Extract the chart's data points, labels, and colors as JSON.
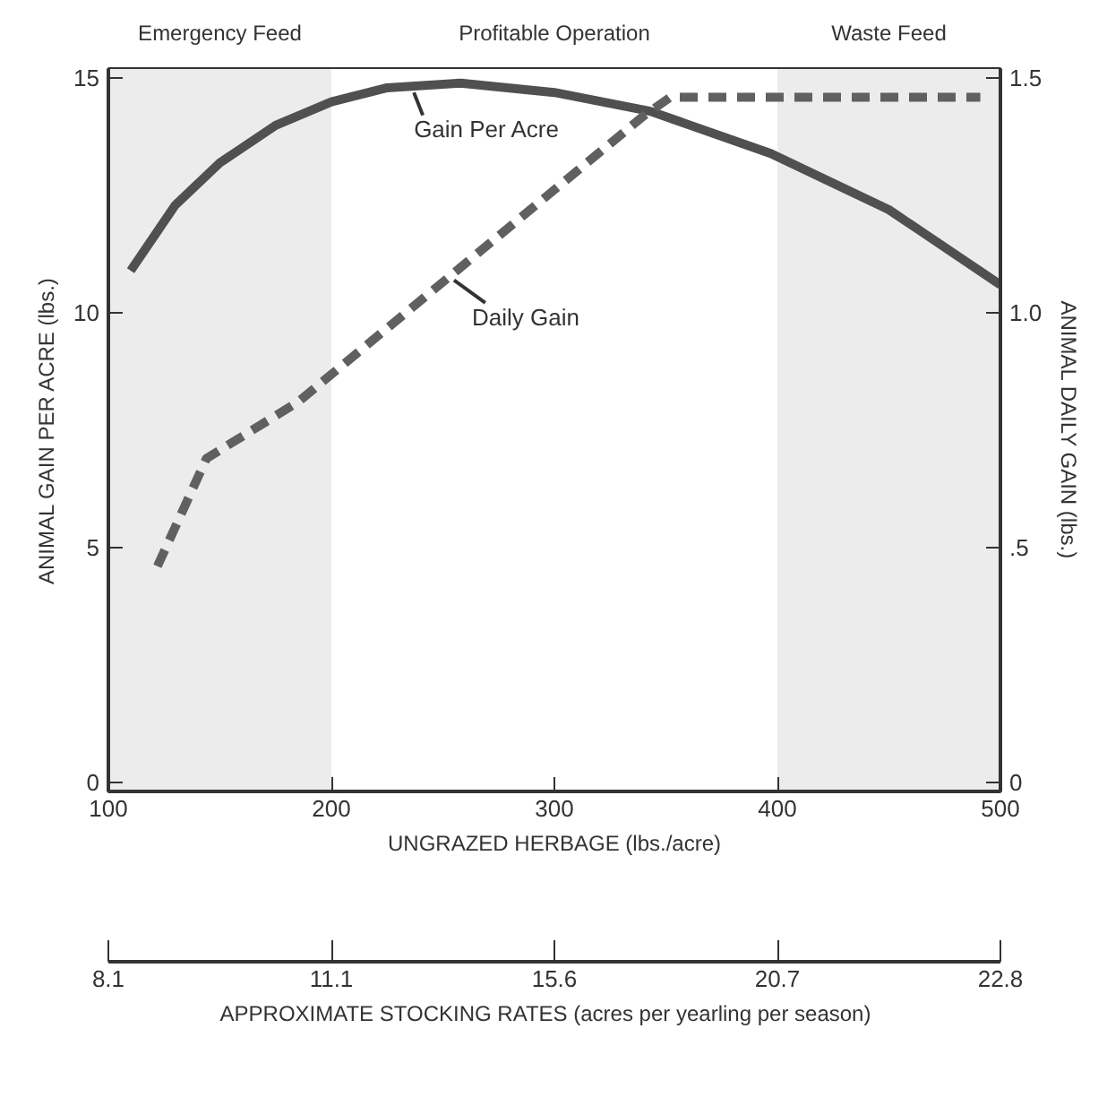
{
  "chart_data": {
    "type": "line",
    "xlabel": "UNGRAZED HERBAGE (lbs./acre)",
    "ylabel": "ANIMAL GAIN PER ACRE (lbs.)",
    "y2label": "ANIMAL DAILY GAIN (lbs.)",
    "xlim": [
      100,
      500
    ],
    "xticks": [
      100,
      200,
      300,
      400,
      500
    ],
    "ylim": [
      -0.2,
      15.2
    ],
    "yticks": [
      0,
      5,
      10,
      15
    ],
    "y2lim": [
      -0.02,
      1.52
    ],
    "y2ticks": [
      0,
      {
        "value": 0.5,
        "label": ".5"
      },
      {
        "value": 1,
        "label": "1.0"
      },
      {
        "value": 1.5,
        "label": "1.5"
      }
    ],
    "x2label": "APPROXIMATE STOCKING RATES    (acres per yearling per season)",
    "series": [
      {
        "color": "#505050",
        "line_style": "solid",
        "x": [
          110,
          130,
          150,
          175,
          200,
          225,
          258,
          300,
          343,
          397,
          450,
          500
        ],
        "values": [
          10.9,
          12.3,
          13.2,
          14.0,
          14.5,
          14.8,
          14.9,
          14.7,
          14.3,
          13.4,
          12.2,
          10.6
        ]
      },
      {
        "color": "#606060",
        "line_style": "dashed",
        "axis": "y2",
        "x": [
          122,
          144,
          185,
          340,
          352,
          491
        ],
        "values": [
          0.46,
          0.69,
          0.81,
          1.42,
          1.46,
          1.46
        ]
      }
    ],
    "bands": [
      {
        "axis": "x",
        "from": 100,
        "to": 200,
        "label": "Emergency Feed",
        "color": "#ececec"
      },
      {
        "axis": "x",
        "from": 200,
        "to": 400,
        "label": "Profitable Operation",
        "color": "#ffffff"
      },
      {
        "axis": "x",
        "from": 400,
        "to": 500,
        "label": "Waste Feed",
        "color": "#ececec"
      }
    ],
    "annotations": [
      {
        "text": "Gain Per Acre",
        "x": 237,
        "y": 14.7
      },
      {
        "text": "Daily Gain",
        "x": 255,
        "y": 10.7
      },
      "8.1",
      "11.1",
      "15.6",
      "20.7",
      "22.8"
    ]
  }
}
